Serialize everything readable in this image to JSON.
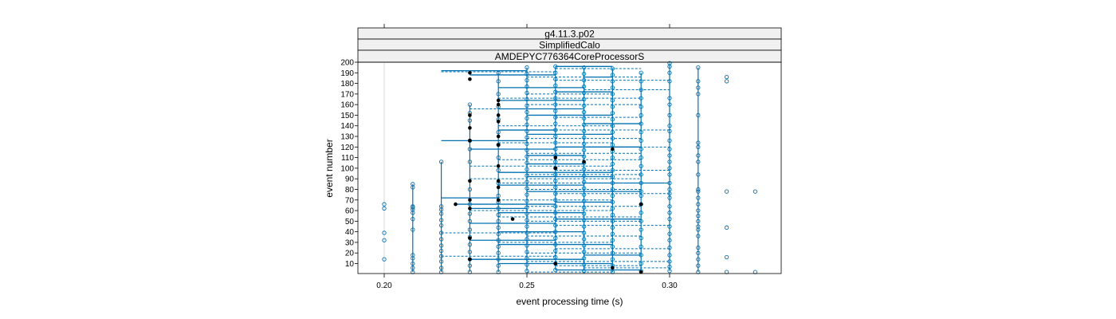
{
  "chart_data": {
    "type": "scatter",
    "strips": [
      "g4.11.3.p02",
      "SimplifiedCalo",
      "AMDEPYC776364CoreProcessorS"
    ],
    "xlabel": "event processing time (s)",
    "ylabel": "event number",
    "xlim": [
      0.19,
      0.34
    ],
    "ylim": [
      0,
      200
    ],
    "x_ticks": [
      0.2,
      0.25,
      0.3
    ],
    "x_tick_labels": [
      "0.20",
      "0.25",
      "0.30"
    ],
    "y_ticks": [
      10,
      20,
      30,
      40,
      50,
      60,
      70,
      80,
      90,
      100,
      110,
      120,
      130,
      140,
      150,
      160,
      170,
      180,
      190,
      200
    ],
    "y_tick_labels": [
      "10",
      "20",
      "30",
      "40",
      "50",
      "60",
      "70",
      "80",
      "90",
      "100",
      "110",
      "120",
      "130",
      "140",
      "150",
      "160",
      "170",
      "180",
      "190",
      "200"
    ],
    "grid": false,
    "colors": {
      "open_point": "#0072b2",
      "median_point": "#000000",
      "line": "#0072b2",
      "strip_bg": "#f0f0f0",
      "reference_line": "#d9d9d9"
    },
    "reference_x": 0.2,
    "x_levels": [
      0.2,
      0.21,
      0.22,
      0.23,
      0.24,
      0.25,
      0.26,
      0.27,
      0.28,
      0.29,
      0.3,
      0.31,
      0.32,
      0.33
    ],
    "points_open": [
      [
        0.2,
        14
      ],
      [
        0.2,
        32
      ],
      [
        0.2,
        39
      ],
      [
        0.2,
        62
      ],
      [
        0.2,
        66
      ],
      [
        0.21,
        2
      ],
      [
        0.21,
        6
      ],
      [
        0.21,
        10
      ],
      [
        0.21,
        15
      ],
      [
        0.21,
        18
      ],
      [
        0.21,
        42
      ],
      [
        0.21,
        52
      ],
      [
        0.21,
        58
      ],
      [
        0.21,
        61
      ],
      [
        0.21,
        63
      ],
      [
        0.21,
        64
      ],
      [
        0.21,
        82
      ],
      [
        0.21,
        85
      ],
      [
        0.22,
        2
      ],
      [
        0.22,
        6
      ],
      [
        0.22,
        12
      ],
      [
        0.22,
        17
      ],
      [
        0.22,
        22
      ],
      [
        0.22,
        27
      ],
      [
        0.22,
        33
      ],
      [
        0.22,
        39
      ],
      [
        0.22,
        46
      ],
      [
        0.22,
        51
      ],
      [
        0.22,
        57
      ],
      [
        0.22,
        61
      ],
      [
        0.22,
        64
      ],
      [
        0.22,
        106
      ],
      [
        0.23,
        2
      ],
      [
        0.23,
        8
      ],
      [
        0.23,
        14
      ],
      [
        0.23,
        21
      ],
      [
        0.23,
        28
      ],
      [
        0.23,
        35
      ],
      [
        0.23,
        42
      ],
      [
        0.23,
        50
      ],
      [
        0.23,
        57
      ],
      [
        0.23,
        66
      ],
      [
        0.23,
        80
      ],
      [
        0.23,
        106
      ],
      [
        0.23,
        118
      ],
      [
        0.23,
        126
      ],
      [
        0.23,
        145
      ],
      [
        0.23,
        152
      ],
      [
        0.23,
        160
      ],
      [
        0.24,
        2
      ],
      [
        0.24,
        8
      ],
      [
        0.24,
        14
      ],
      [
        0.24,
        20
      ],
      [
        0.24,
        26
      ],
      [
        0.24,
        32
      ],
      [
        0.24,
        38
      ],
      [
        0.24,
        44
      ],
      [
        0.24,
        50
      ],
      [
        0.24,
        56
      ],
      [
        0.24,
        62
      ],
      [
        0.24,
        68
      ],
      [
        0.24,
        74
      ],
      [
        0.24,
        86
      ],
      [
        0.24,
        98
      ],
      [
        0.24,
        110
      ],
      [
        0.24,
        122
      ],
      [
        0.24,
        134
      ],
      [
        0.24,
        146
      ],
      [
        0.24,
        158
      ],
      [
        0.24,
        170
      ],
      [
        0.24,
        182
      ],
      [
        0.24,
        190
      ],
      [
        0.25,
        3
      ],
      [
        0.25,
        9
      ],
      [
        0.25,
        15
      ],
      [
        0.25,
        21
      ],
      [
        0.25,
        27
      ],
      [
        0.25,
        33
      ],
      [
        0.25,
        39
      ],
      [
        0.25,
        45
      ],
      [
        0.25,
        51
      ],
      [
        0.25,
        57
      ],
      [
        0.25,
        63
      ],
      [
        0.25,
        69
      ],
      [
        0.25,
        75
      ],
      [
        0.25,
        81
      ],
      [
        0.25,
        87
      ],
      [
        0.25,
        93
      ],
      [
        0.25,
        99
      ],
      [
        0.25,
        105
      ],
      [
        0.25,
        111
      ],
      [
        0.25,
        117
      ],
      [
        0.25,
        123
      ],
      [
        0.25,
        129
      ],
      [
        0.25,
        135
      ],
      [
        0.25,
        141
      ],
      [
        0.25,
        147
      ],
      [
        0.25,
        153
      ],
      [
        0.25,
        159
      ],
      [
        0.25,
        165
      ],
      [
        0.25,
        171
      ],
      [
        0.25,
        177
      ],
      [
        0.25,
        183
      ],
      [
        0.25,
        189
      ],
      [
        0.25,
        195
      ],
      [
        0.26,
        4
      ],
      [
        0.26,
        10
      ],
      [
        0.26,
        16
      ],
      [
        0.26,
        22
      ],
      [
        0.26,
        28
      ],
      [
        0.26,
        34
      ],
      [
        0.26,
        40
      ],
      [
        0.26,
        46
      ],
      [
        0.26,
        52
      ],
      [
        0.26,
        58
      ],
      [
        0.26,
        64
      ],
      [
        0.26,
        70
      ],
      [
        0.26,
        76
      ],
      [
        0.26,
        82
      ],
      [
        0.26,
        88
      ],
      [
        0.26,
        94
      ],
      [
        0.26,
        100
      ],
      [
        0.26,
        106
      ],
      [
        0.26,
        112
      ],
      [
        0.26,
        118
      ],
      [
        0.26,
        124
      ],
      [
        0.26,
        130
      ],
      [
        0.26,
        136
      ],
      [
        0.26,
        142
      ],
      [
        0.26,
        148
      ],
      [
        0.26,
        154
      ],
      [
        0.26,
        160
      ],
      [
        0.26,
        166
      ],
      [
        0.26,
        172
      ],
      [
        0.26,
        178
      ],
      [
        0.26,
        184
      ],
      [
        0.26,
        190
      ],
      [
        0.26,
        196
      ],
      [
        0.27,
        3
      ],
      [
        0.27,
        9
      ],
      [
        0.27,
        15
      ],
      [
        0.27,
        21
      ],
      [
        0.27,
        27
      ],
      [
        0.27,
        33
      ],
      [
        0.27,
        39
      ],
      [
        0.27,
        45
      ],
      [
        0.27,
        51
      ],
      [
        0.27,
        57
      ],
      [
        0.27,
        63
      ],
      [
        0.27,
        69
      ],
      [
        0.27,
        75
      ],
      [
        0.27,
        81
      ],
      [
        0.27,
        87
      ],
      [
        0.27,
        93
      ],
      [
        0.27,
        99
      ],
      [
        0.27,
        105
      ],
      [
        0.27,
        111
      ],
      [
        0.27,
        117
      ],
      [
        0.27,
        123
      ],
      [
        0.27,
        129
      ],
      [
        0.27,
        135
      ],
      [
        0.27,
        141
      ],
      [
        0.27,
        147
      ],
      [
        0.27,
        153
      ],
      [
        0.27,
        159
      ],
      [
        0.27,
        165
      ],
      [
        0.27,
        171
      ],
      [
        0.27,
        177
      ],
      [
        0.27,
        183
      ],
      [
        0.27,
        189
      ],
      [
        0.27,
        195
      ],
      [
        0.28,
        2
      ],
      [
        0.28,
        8
      ],
      [
        0.28,
        14
      ],
      [
        0.28,
        20
      ],
      [
        0.28,
        26
      ],
      [
        0.28,
        32
      ],
      [
        0.28,
        38
      ],
      [
        0.28,
        44
      ],
      [
        0.28,
        50
      ],
      [
        0.28,
        56
      ],
      [
        0.28,
        62
      ],
      [
        0.28,
        68
      ],
      [
        0.28,
        74
      ],
      [
        0.28,
        80
      ],
      [
        0.28,
        86
      ],
      [
        0.28,
        92
      ],
      [
        0.28,
        98
      ],
      [
        0.28,
        104
      ],
      [
        0.28,
        110
      ],
      [
        0.28,
        116
      ],
      [
        0.28,
        122
      ],
      [
        0.28,
        128
      ],
      [
        0.28,
        134
      ],
      [
        0.28,
        140
      ],
      [
        0.28,
        146
      ],
      [
        0.28,
        152
      ],
      [
        0.28,
        158
      ],
      [
        0.28,
        164
      ],
      [
        0.28,
        170
      ],
      [
        0.28,
        176
      ],
      [
        0.28,
        182
      ],
      [
        0.28,
        188
      ],
      [
        0.28,
        194
      ],
      [
        0.29,
        3
      ],
      [
        0.29,
        10
      ],
      [
        0.29,
        18
      ],
      [
        0.29,
        26
      ],
      [
        0.29,
        34
      ],
      [
        0.29,
        42
      ],
      [
        0.29,
        50
      ],
      [
        0.29,
        58
      ],
      [
        0.29,
        66
      ],
      [
        0.29,
        74
      ],
      [
        0.29,
        78
      ],
      [
        0.29,
        86
      ],
      [
        0.29,
        94
      ],
      [
        0.29,
        102
      ],
      [
        0.29,
        110
      ],
      [
        0.29,
        118
      ],
      [
        0.29,
        126
      ],
      [
        0.29,
        134
      ],
      [
        0.29,
        142
      ],
      [
        0.29,
        150
      ],
      [
        0.29,
        158
      ],
      [
        0.29,
        166
      ],
      [
        0.29,
        174
      ],
      [
        0.29,
        182
      ],
      [
        0.29,
        190
      ],
      [
        0.3,
        3
      ],
      [
        0.3,
        7
      ],
      [
        0.3,
        12
      ],
      [
        0.3,
        18
      ],
      [
        0.3,
        25
      ],
      [
        0.3,
        32
      ],
      [
        0.3,
        38
      ],
      [
        0.3,
        45
      ],
      [
        0.3,
        52
      ],
      [
        0.3,
        58
      ],
      [
        0.3,
        64
      ],
      [
        0.3,
        72
      ],
      [
        0.3,
        76
      ],
      [
        0.3,
        80
      ],
      [
        0.3,
        86
      ],
      [
        0.3,
        94
      ],
      [
        0.3,
        100
      ],
      [
        0.3,
        106
      ],
      [
        0.3,
        112
      ],
      [
        0.3,
        118
      ],
      [
        0.3,
        126
      ],
      [
        0.3,
        135
      ],
      [
        0.3,
        140
      ],
      [
        0.3,
        150
      ],
      [
        0.3,
        160
      ],
      [
        0.3,
        166
      ],
      [
        0.3,
        182
      ],
      [
        0.3,
        190
      ],
      [
        0.3,
        196
      ],
      [
        0.3,
        199
      ],
      [
        0.31,
        2
      ],
      [
        0.31,
        8
      ],
      [
        0.31,
        14
      ],
      [
        0.31,
        20
      ],
      [
        0.31,
        25
      ],
      [
        0.31,
        36
      ],
      [
        0.31,
        42
      ],
      [
        0.31,
        45
      ],
      [
        0.31,
        50
      ],
      [
        0.31,
        55
      ],
      [
        0.31,
        60
      ],
      [
        0.31,
        66
      ],
      [
        0.31,
        72
      ],
      [
        0.31,
        78
      ],
      [
        0.31,
        80
      ],
      [
        0.31,
        94
      ],
      [
        0.31,
        106
      ],
      [
        0.31,
        112
      ],
      [
        0.31,
        120
      ],
      [
        0.31,
        124
      ],
      [
        0.31,
        150
      ],
      [
        0.31,
        170
      ],
      [
        0.31,
        176
      ],
      [
        0.31,
        182
      ],
      [
        0.31,
        195
      ],
      [
        0.32,
        2
      ],
      [
        0.32,
        16
      ],
      [
        0.32,
        44
      ],
      [
        0.32,
        78
      ],
      [
        0.32,
        182
      ],
      [
        0.32,
        186
      ],
      [
        0.33,
        2
      ],
      [
        0.33,
        78
      ]
    ],
    "points_median": [
      [
        0.23,
        190
      ],
      [
        0.23,
        184
      ],
      [
        0.23,
        150
      ],
      [
        0.23,
        138
      ],
      [
        0.23,
        126
      ],
      [
        0.23,
        88
      ],
      [
        0.23,
        70
      ],
      [
        0.23,
        62
      ],
      [
        0.23,
        34
      ],
      [
        0.23,
        14
      ],
      [
        0.24,
        164
      ],
      [
        0.24,
        160
      ],
      [
        0.24,
        150
      ],
      [
        0.24,
        144
      ],
      [
        0.24,
        130
      ],
      [
        0.24,
        122
      ],
      [
        0.24,
        102
      ],
      [
        0.24,
        88
      ],
      [
        0.24,
        82
      ],
      [
        0.24,
        70
      ],
      [
        0.245,
        52
      ],
      [
        0.225,
        66
      ],
      [
        0.26,
        110
      ],
      [
        0.26,
        100
      ],
      [
        0.26,
        10
      ],
      [
        0.27,
        106
      ],
      [
        0.28,
        118
      ],
      [
        0.28,
        6
      ],
      [
        0.29,
        66
      ],
      [
        0.29,
        2
      ]
    ],
    "solid_segments": [
      [
        0.22,
        0.25,
        192
      ],
      [
        0.23,
        0.26,
        188
      ],
      [
        0.24,
        0.27,
        176
      ],
      [
        0.22,
        0.25,
        126
      ],
      [
        0.23,
        0.26,
        118
      ],
      [
        0.22,
        0.24,
        72
      ],
      [
        0.225,
        0.26,
        66
      ],
      [
        0.23,
        0.25,
        62
      ],
      [
        0.24,
        0.27,
        164
      ],
      [
        0.24,
        0.27,
        156
      ],
      [
        0.25,
        0.28,
        150
      ],
      [
        0.24,
        0.26,
        136
      ],
      [
        0.25,
        0.28,
        132
      ],
      [
        0.25,
        0.27,
        112
      ],
      [
        0.24,
        0.28,
        96
      ],
      [
        0.25,
        0.28,
        92
      ],
      [
        0.24,
        0.27,
        84
      ],
      [
        0.25,
        0.29,
        78
      ],
      [
        0.24,
        0.27,
        58
      ],
      [
        0.23,
        0.26,
        48
      ],
      [
        0.24,
        0.27,
        40
      ],
      [
        0.23,
        0.26,
        32
      ],
      [
        0.24,
        0.28,
        28
      ],
      [
        0.23,
        0.27,
        14
      ],
      [
        0.24,
        0.28,
        10
      ],
      [
        0.26,
        0.29,
        4
      ],
      [
        0.27,
        0.29,
        18
      ],
      [
        0.26,
        0.29,
        52
      ],
      [
        0.27,
        0.3,
        86
      ],
      [
        0.26,
        0.29,
        120
      ],
      [
        0.27,
        0.29,
        142
      ],
      [
        0.26,
        0.28,
        172
      ],
      [
        0.27,
        0.28,
        186
      ],
      [
        0.26,
        0.28,
        196
      ],
      [
        0.25,
        0.27,
        104
      ],
      [
        0.26,
        0.28,
        68
      ]
    ],
    "dashed_segments": [
      [
        0.22,
        0.26,
        191
      ],
      [
        0.25,
        0.29,
        186
      ],
      [
        0.26,
        0.3,
        183
      ],
      [
        0.25,
        0.28,
        170
      ],
      [
        0.24,
        0.29,
        166
      ],
      [
        0.25,
        0.29,
        160
      ],
      [
        0.26,
        0.29,
        148
      ],
      [
        0.24,
        0.28,
        140
      ],
      [
        0.26,
        0.3,
        136
      ],
      [
        0.25,
        0.29,
        128
      ],
      [
        0.24,
        0.28,
        124
      ],
      [
        0.27,
        0.3,
        120
      ],
      [
        0.25,
        0.29,
        114
      ],
      [
        0.24,
        0.29,
        108
      ],
      [
        0.23,
        0.28,
        102
      ],
      [
        0.26,
        0.3,
        98
      ],
      [
        0.25,
        0.29,
        94
      ],
      [
        0.23,
        0.29,
        90
      ],
      [
        0.24,
        0.28,
        86
      ],
      [
        0.25,
        0.29,
        80
      ],
      [
        0.26,
        0.3,
        76
      ],
      [
        0.24,
        0.28,
        70
      ],
      [
        0.25,
        0.29,
        64
      ],
      [
        0.23,
        0.28,
        60
      ],
      [
        0.24,
        0.29,
        54
      ],
      [
        0.25,
        0.29,
        50
      ],
      [
        0.26,
        0.3,
        46
      ],
      [
        0.22,
        0.26,
        39
      ],
      [
        0.25,
        0.29,
        36
      ],
      [
        0.24,
        0.28,
        30
      ],
      [
        0.26,
        0.3,
        24
      ],
      [
        0.25,
        0.29,
        20
      ],
      [
        0.22,
        0.26,
        17
      ],
      [
        0.25,
        0.3,
        12
      ],
      [
        0.26,
        0.29,
        8
      ],
      [
        0.27,
        0.3,
        6
      ],
      [
        0.25,
        0.28,
        2
      ],
      [
        0.23,
        0.26,
        156
      ],
      [
        0.27,
        0.3,
        174
      ],
      [
        0.26,
        0.29,
        194
      ]
    ]
  }
}
